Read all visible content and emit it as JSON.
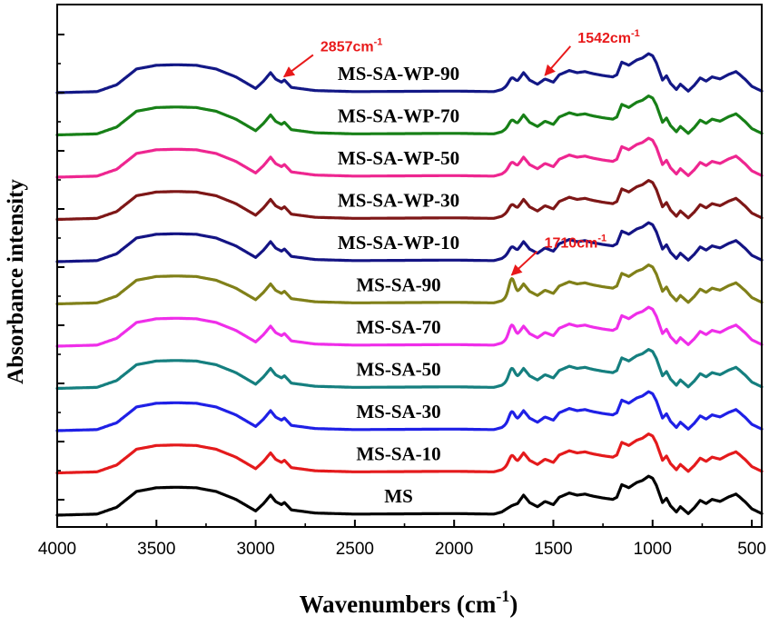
{
  "chart_data": {
    "type": "line",
    "title": "",
    "xlabel": "Wavenumbers (cm",
    "xlabel_sup": "-1",
    "xlabel_suffix": ")",
    "ylabel": "Absorbance intensity",
    "xlim": [
      4000,
      450
    ],
    "x_reversed": true,
    "x_ticks": [
      4000,
      3500,
      3000,
      2500,
      2000,
      1500,
      1000,
      500
    ],
    "y_ticks_labeled": false,
    "grid": false,
    "legend": "inline labels next to each curve",
    "profile_shape_points": [
      [
        4000,
        0.0
      ],
      [
        3800,
        0.02
      ],
      [
        3700,
        0.15
      ],
      [
        3600,
        0.45
      ],
      [
        3500,
        0.52
      ],
      [
        3400,
        0.53
      ],
      [
        3300,
        0.52
      ],
      [
        3200,
        0.45
      ],
      [
        3100,
        0.3
      ],
      [
        3000,
        0.08
      ],
      [
        2960,
        0.22
      ],
      [
        2925,
        0.38
      ],
      [
        2900,
        0.26
      ],
      [
        2870,
        0.2
      ],
      [
        2855,
        0.24
      ],
      [
        2820,
        0.1
      ],
      [
        2700,
        0.04
      ],
      [
        2500,
        0.02
      ],
      [
        2000,
        0.03
      ],
      [
        1800,
        0.02
      ],
      [
        1760,
        0.06
      ],
      [
        1710,
        0.18
      ],
      [
        1680,
        0.22
      ],
      [
        1650,
        0.38
      ],
      [
        1620,
        0.24
      ],
      [
        1580,
        0.16
      ],
      [
        1542,
        0.26
      ],
      [
        1500,
        0.2
      ],
      [
        1470,
        0.34
      ],
      [
        1420,
        0.42
      ],
      [
        1380,
        0.38
      ],
      [
        1340,
        0.4
      ],
      [
        1300,
        0.36
      ],
      [
        1240,
        0.32
      ],
      [
        1200,
        0.3
      ],
      [
        1180,
        0.34
      ],
      [
        1155,
        0.58
      ],
      [
        1120,
        0.52
      ],
      [
        1080,
        0.62
      ],
      [
        1050,
        0.66
      ],
      [
        1020,
        0.74
      ],
      [
        1000,
        0.7
      ],
      [
        980,
        0.56
      ],
      [
        950,
        0.24
      ],
      [
        930,
        0.32
      ],
      [
        910,
        0.18
      ],
      [
        880,
        0.06
      ],
      [
        860,
        0.16
      ],
      [
        820,
        0.03
      ],
      [
        790,
        0.14
      ],
      [
        760,
        0.28
      ],
      [
        730,
        0.22
      ],
      [
        700,
        0.3
      ],
      [
        660,
        0.26
      ],
      [
        620,
        0.34
      ],
      [
        580,
        0.4
      ],
      [
        560,
        0.34
      ],
      [
        530,
        0.24
      ],
      [
        500,
        0.12
      ],
      [
        450,
        0.03
      ]
    ],
    "series": [
      {
        "name": "MS",
        "color": "#000000",
        "offset": 0,
        "ester_band": 0,
        "label_x": 1750
      },
      {
        "name": "MS-SA-10",
        "color": "#e41a1c",
        "offset": 1,
        "ester_band": 0.15,
        "label_x": 1750
      },
      {
        "name": "MS-SA-30",
        "color": "#1f20e6",
        "offset": 2,
        "ester_band": 0.18,
        "label_x": 1750
      },
      {
        "name": "MS-SA-50",
        "color": "#157f7f",
        "offset": 3,
        "ester_band": 0.2,
        "label_x": 1750
      },
      {
        "name": "MS-SA-70",
        "color": "#ef2ee9",
        "offset": 4,
        "ester_band": 0.22,
        "label_x": 1750
      },
      {
        "name": "MS-SA-90",
        "color": "#808019",
        "offset": 5,
        "ester_band": 0.3,
        "label_x": 1750
      },
      {
        "name": "MS-SA-WP-10",
        "color": "#141484",
        "offset": 6,
        "ester_band": 0.1,
        "label_x": 1750
      },
      {
        "name": "MS-SA-WP-30",
        "color": "#7e1717",
        "offset": 7,
        "ester_band": 0.1,
        "label_x": 1750
      },
      {
        "name": "MS-SA-WP-50",
        "color": "#ee2690",
        "offset": 8,
        "ester_band": 0.1,
        "label_x": 1750
      },
      {
        "name": "MS-SA-WP-70",
        "color": "#178017",
        "offset": 9,
        "ester_band": 0.1,
        "label_x": 1750
      },
      {
        "name": "MS-SA-WP-90",
        "color": "#131886",
        "offset": 10,
        "ester_band": 0.1,
        "label_x": 1750
      }
    ],
    "annotations": [
      {
        "text": "2857cm",
        "sup": "-1",
        "wavenumber": 2857,
        "series": "MS-SA-WP-90",
        "color": "#e8191a"
      },
      {
        "text": "1542cm",
        "sup": "-1",
        "wavenumber": 1542,
        "series": "MS-SA-WP-90",
        "color": "#e8191a"
      },
      {
        "text": "1710cm",
        "sup": "-1",
        "wavenumber": 1710,
        "series": "MS-SA-90",
        "color": "#e8191a"
      }
    ]
  }
}
